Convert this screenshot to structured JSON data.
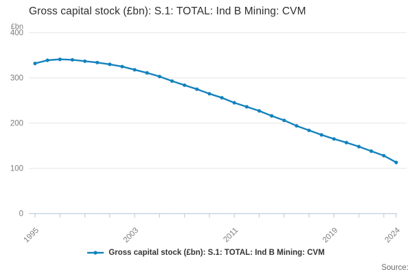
{
  "title": "Gross capital stock (£bn): S.1: TOTAL: Ind B Mining: CVM",
  "y_axis": {
    "unit": "£bn"
  },
  "legend": {
    "label": "Gross capital stock (£bn): S.1: TOTAL: Ind B Mining: CVM"
  },
  "source_label": "Source:",
  "colors": {
    "line": "#1382be",
    "grid": "#e6e6e6",
    "axis": "#c4d3e0",
    "tick_text": "#7c7c7c",
    "title_text": "#2e2e2e"
  },
  "chart_data": {
    "type": "line",
    "title": "Gross capital stock (£bn): S.1: TOTAL: Ind B Mining: CVM",
    "xlabel": "",
    "ylabel": "£bn",
    "x": [
      1995,
      1996,
      1997,
      1998,
      1999,
      2000,
      2001,
      2002,
      2003,
      2004,
      2005,
      2006,
      2007,
      2008,
      2009,
      2010,
      2011,
      2012,
      2013,
      2014,
      2015,
      2016,
      2017,
      2018,
      2019,
      2020,
      2021,
      2022,
      2023,
      2024
    ],
    "series": [
      {
        "name": "Gross capital stock (£bn): S.1: TOTAL: Ind B Mining: CVM",
        "values": [
          332,
          339,
          341,
          340,
          337,
          334,
          330,
          325,
          318,
          311,
          303,
          293,
          284,
          275,
          265,
          256,
          245,
          236,
          227,
          216,
          206,
          194,
          184,
          174,
          165,
          157,
          148,
          138,
          128,
          113
        ]
      }
    ],
    "ylim": [
      0,
      400
    ],
    "yticks": [
      0,
      100,
      200,
      300,
      400
    ],
    "xlim": [
      1995,
      2024
    ],
    "xticks_minor": [
      1995,
      1997,
      1999,
      2001,
      2003,
      2005,
      2007,
      2009,
      2011,
      2013,
      2015,
      2017,
      2019,
      2021,
      2023,
      2024
    ],
    "xticks_labeled": [
      1995,
      2003,
      2011,
      2019,
      2024
    ],
    "grid": "horizontal",
    "legend_position": "bottom",
    "marker": "circle"
  }
}
